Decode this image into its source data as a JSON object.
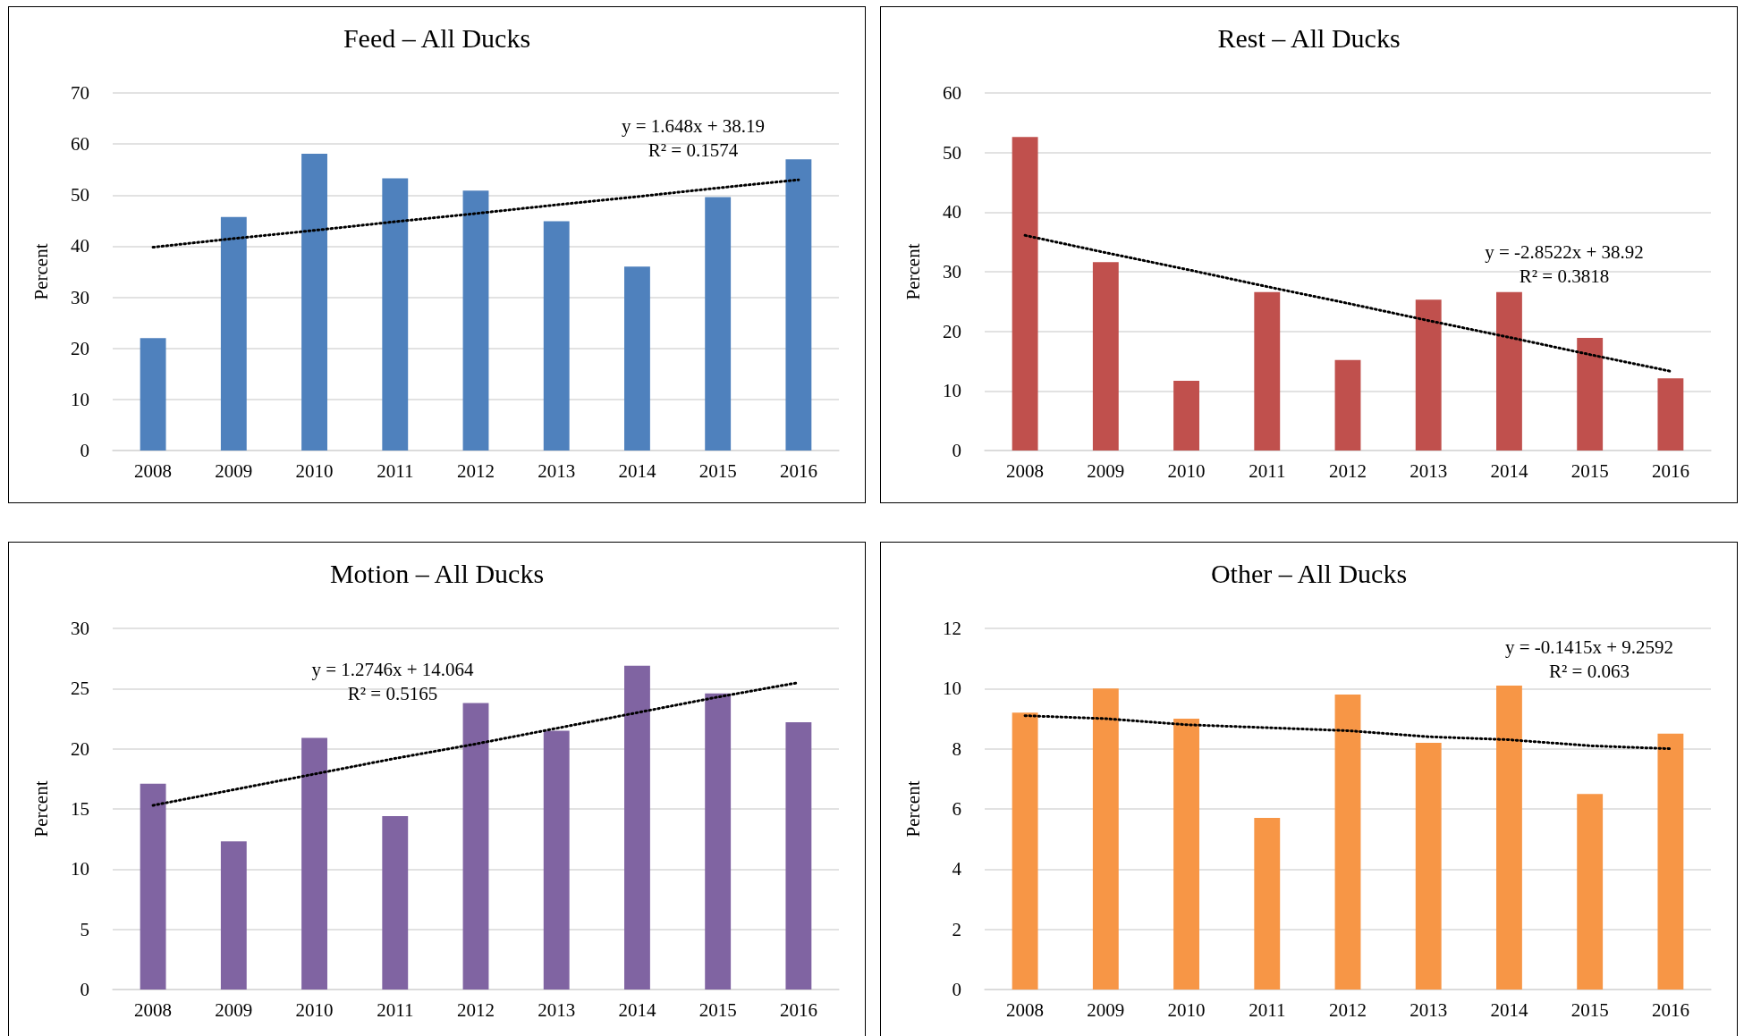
{
  "chart_data": [
    {
      "type": "bar",
      "title": "Feed – All Ducks",
      "ylabel": "Percent",
      "categories": [
        "2008",
        "2009",
        "2010",
        "2011",
        "2012",
        "2013",
        "2014",
        "2015",
        "2016"
      ],
      "ylim": [
        0,
        70
      ],
      "yticks": [
        0,
        10,
        20,
        30,
        40,
        50,
        60,
        70
      ],
      "grid": "y",
      "series": [
        {
          "color": "#4f81bd",
          "values": [
            22,
            45.7,
            58.1,
            53.3,
            50.9,
            44.9,
            36,
            49.6,
            57
          ]
        },
        {
          "type": "line",
          "color": "#000000",
          "line_style": "dotted",
          "marker": "none",
          "values": [
            39.8,
            41.5,
            43.1,
            44.8,
            46.4,
            48.1,
            49.7,
            51.4,
            53.0
          ]
        }
      ],
      "annotations": [
        "y = 1.648x + 38.19",
        "R² = 0.1574"
      ]
    },
    {
      "type": "bar",
      "title": "Rest – All Ducks",
      "ylabel": "Percent",
      "categories": [
        "2008",
        "2009",
        "2010",
        "2011",
        "2012",
        "2013",
        "2014",
        "2015",
        "2016"
      ],
      "ylim": [
        0,
        60
      ],
      "yticks": [
        0,
        10,
        20,
        30,
        40,
        50,
        60
      ],
      "grid": "y",
      "series": [
        {
          "color": "#c0504d",
          "values": [
            52.6,
            31.6,
            11.7,
            26.6,
            15.2,
            25.3,
            26.6,
            18.9,
            12.1
          ]
        },
        {
          "type": "line",
          "color": "#000000",
          "line_style": "dotted",
          "marker": "none",
          "values": [
            36.1,
            33.2,
            30.4,
            27.5,
            24.7,
            21.8,
            19.0,
            16.1,
            13.3
          ]
        }
      ],
      "annotations": [
        "y = -2.8522x + 38.92",
        "R² = 0.3818"
      ]
    },
    {
      "type": "bar",
      "title": "Motion – All Ducks",
      "ylabel": "Percent",
      "categories": [
        "2008",
        "2009",
        "2010",
        "2011",
        "2012",
        "2013",
        "2014",
        "2015",
        "2016"
      ],
      "ylim": [
        0,
        30
      ],
      "yticks": [
        0,
        5,
        10,
        15,
        20,
        25,
        30
      ],
      "grid": "y",
      "series": [
        {
          "color": "#8064a2",
          "values": [
            17.1,
            12.3,
            20.9,
            14.4,
            23.8,
            21.5,
            26.9,
            24.6,
            22.2
          ]
        },
        {
          "type": "line",
          "color": "#000000",
          "line_style": "dotted",
          "marker": "none",
          "values": [
            15.3,
            16.6,
            17.9,
            19.2,
            20.4,
            21.7,
            23.0,
            24.3,
            25.5
          ]
        }
      ],
      "annotations": [
        "y = 1.2746x + 14.064",
        "R² = 0.5165"
      ]
    },
    {
      "type": "bar",
      "title": "Other – All Ducks",
      "ylabel": "Percent",
      "categories": [
        "2008",
        "2009",
        "2010",
        "2011",
        "2012",
        "2013",
        "2014",
        "2015",
        "2016"
      ],
      "ylim": [
        0,
        12
      ],
      "yticks": [
        0,
        2,
        4,
        6,
        8,
        10,
        12
      ],
      "grid": "y",
      "series": [
        {
          "color": "#f79646",
          "values": [
            9.2,
            10.0,
            9.0,
            5.7,
            9.8,
            8.2,
            10.1,
            6.5,
            8.5
          ]
        },
        {
          "type": "line",
          "color": "#000000",
          "line_style": "dotted",
          "marker": "none",
          "values": [
            9.1,
            9.0,
            8.8,
            8.7,
            8.6,
            8.4,
            8.3,
            8.1,
            8.0
          ]
        }
      ],
      "annotations": [
        "y = -0.1415x + 9.2592",
        "R² = 0.063"
      ]
    }
  ]
}
